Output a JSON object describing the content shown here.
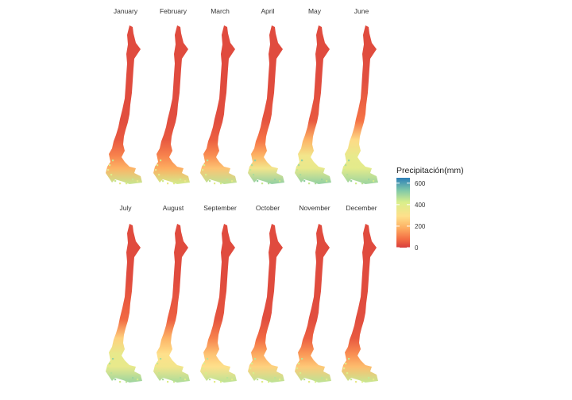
{
  "figure": {
    "type": "small-multiples-map",
    "region": "Chile",
    "layout": {
      "rows": 2,
      "cols": 6
    }
  },
  "panels": [
    {
      "month": "January",
      "pattern": [
        0.05,
        0.05,
        0.06,
        0.1,
        0.22,
        0.35,
        0.7
      ]
    },
    {
      "month": "February",
      "pattern": [
        0.05,
        0.05,
        0.06,
        0.1,
        0.22,
        0.33,
        0.68
      ]
    },
    {
      "month": "March",
      "pattern": [
        0.05,
        0.05,
        0.06,
        0.12,
        0.25,
        0.4,
        0.72
      ]
    },
    {
      "month": "April",
      "pattern": [
        0.05,
        0.05,
        0.08,
        0.18,
        0.35,
        0.55,
        0.8
      ]
    },
    {
      "month": "May",
      "pattern": [
        0.05,
        0.05,
        0.1,
        0.35,
        0.55,
        0.6,
        0.8
      ]
    },
    {
      "month": "June",
      "pattern": [
        0.05,
        0.06,
        0.18,
        0.48,
        0.6,
        0.62,
        0.78
      ]
    },
    {
      "month": "July",
      "pattern": [
        0.05,
        0.05,
        0.15,
        0.45,
        0.6,
        0.6,
        0.78
      ]
    },
    {
      "month": "August",
      "pattern": [
        0.05,
        0.05,
        0.12,
        0.35,
        0.5,
        0.55,
        0.75
      ]
    },
    {
      "month": "September",
      "pattern": [
        0.05,
        0.05,
        0.08,
        0.22,
        0.4,
        0.5,
        0.72
      ]
    },
    {
      "month": "October",
      "pattern": [
        0.05,
        0.05,
        0.06,
        0.15,
        0.32,
        0.45,
        0.72
      ]
    },
    {
      "month": "November",
      "pattern": [
        0.05,
        0.05,
        0.06,
        0.12,
        0.28,
        0.42,
        0.72
      ]
    },
    {
      "month": "December",
      "pattern": [
        0.05,
        0.05,
        0.06,
        0.1,
        0.25,
        0.38,
        0.7
      ]
    }
  ],
  "legend": {
    "title": "Precipitación(mm)",
    "ticks": [
      "600",
      "400",
      "200",
      "0"
    ],
    "range": [
      0,
      650
    ],
    "colors": [
      "#2c7fb8",
      "#7fc8a9",
      "#d9ef8b",
      "#fee08b",
      "#fdae61",
      "#f46d43",
      "#d73027"
    ]
  },
  "colors": {
    "dry": "#d73c3c",
    "wet": "#2c7fb8",
    "background": "#ffffff"
  }
}
